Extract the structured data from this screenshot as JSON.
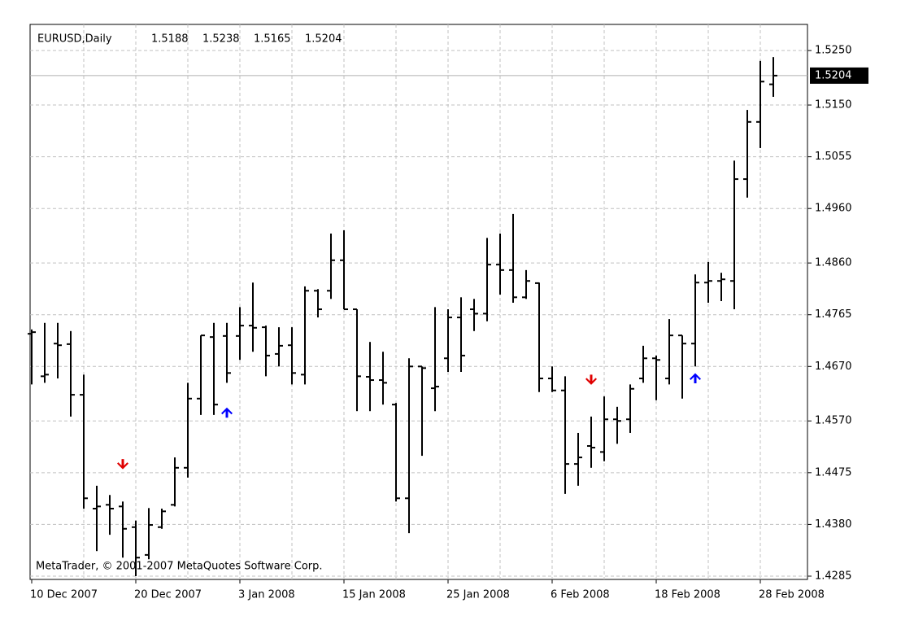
{
  "chart_data": {
    "type": "ohlc",
    "title": "EURUSD,Daily",
    "copyright": "MetaTrader, © 2001-2007 MetaQuotes Software Corp.",
    "color": "#000000",
    "grid": true,
    "categories": [
      "10 Dec 2007",
      null,
      null,
      null,
      null,
      null,
      null,
      null,
      "20 Dec 2007",
      null,
      null,
      null,
      null,
      null,
      null,
      null,
      "3 Jan 2008",
      null,
      null,
      null,
      null,
      null,
      null,
      null,
      "15 Jan 2008",
      null,
      null,
      null,
      null,
      null,
      null,
      null,
      "25 Jan 2008",
      null,
      null,
      null,
      null,
      null,
      null,
      null,
      "6 Feb 2008",
      null,
      null,
      null,
      null,
      null,
      null,
      null,
      "18 Feb 2008",
      null,
      null,
      null,
      null,
      null,
      null,
      null,
      "28 Feb 2008",
      null
    ],
    "open": [
      1.473,
      1.4652,
      1.4712,
      1.4711,
      1.4618,
      1.4409,
      1.4416,
      1.4413,
      1.4375,
      1.4324,
      1.4375,
      1.4416,
      1.4484,
      1.4611,
      1.4724,
      1.4726,
      1.4726,
      1.4745,
      1.4742,
      1.4693,
      1.4709,
      1.4655,
      1.4809,
      1.4809,
      1.4865,
      1.4775,
      1.4651,
      1.4645,
      1.46,
      1.4428,
      1.467,
      1.463,
      1.4685,
      1.476,
      1.4775,
      1.4767,
      1.4857,
      1.4847,
      1.4797,
      1.4823,
      1.4648,
      1.4626,
      1.4491,
      1.4524,
      1.4513,
      1.4573,
      1.4573,
      1.4648,
      1.4685,
      1.4648,
      1.4727,
      1.4712,
      1.4824,
      1.4827,
      1.4827,
      1.5014,
      1.5119,
      1.5188
    ],
    "high": [
      1.4738,
      1.475,
      1.475,
      1.4735,
      1.4655,
      1.4451,
      1.4434,
      1.4422,
      1.4387,
      1.441,
      1.4409,
      1.4503,
      1.464,
      1.4727,
      1.475,
      1.475,
      1.4779,
      1.4824,
      1.4745,
      1.4742,
      1.4742,
      1.4817,
      1.4812,
      1.4914,
      1.492,
      1.4775,
      1.4715,
      1.4697,
      1.4603,
      1.4685,
      1.467,
      1.4779,
      1.4775,
      1.4797,
      1.4794,
      1.4906,
      1.4914,
      1.495,
      1.4847,
      1.4824,
      1.467,
      1.4652,
      1.4548,
      1.4578,
      1.4615,
      1.4596,
      1.4637,
      1.4708,
      1.469,
      1.4757,
      1.4727,
      1.4839,
      1.4862,
      1.4842,
      1.5048,
      1.5141,
      1.5231,
      1.5238
    ],
    "low": [
      1.4637,
      1.464,
      1.4648,
      1.4578,
      1.4409,
      1.4331,
      1.4361,
      1.4319,
      1.4285,
      1.4316,
      1.4372,
      1.4413,
      1.4466,
      1.4581,
      1.4581,
      1.464,
      1.4682,
      1.4697,
      1.4652,
      1.467,
      1.4637,
      1.4637,
      1.476,
      1.4794,
      1.4775,
      1.4588,
      1.4588,
      1.46,
      1.4422,
      1.4364,
      1.4506,
      1.4588,
      1.466,
      1.466,
      1.4735,
      1.4753,
      1.4802,
      1.4787,
      1.4794,
      1.4623,
      1.4623,
      1.4436,
      1.4451,
      1.4484,
      1.4496,
      1.4528,
      1.4548,
      1.464,
      1.4608,
      1.4637,
      1.4611,
      1.467,
      1.4787,
      1.479,
      1.4775,
      1.498,
      1.5071,
      1.5165
    ],
    "close": [
      1.4733,
      1.4655,
      1.4709,
      1.4618,
      1.4428,
      1.4413,
      1.4409,
      1.4372,
      1.4319,
      1.4379,
      1.4404,
      1.4484,
      1.4611,
      1.4727,
      1.46,
      1.4658,
      1.4745,
      1.4741,
      1.469,
      1.4708,
      1.4658,
      1.4809,
      1.4775,
      1.4865,
      1.4775,
      1.4652,
      1.4645,
      1.464,
      1.4428,
      1.467,
      1.4667,
      1.4633,
      1.476,
      1.469,
      1.4767,
      1.4857,
      1.4847,
      1.4797,
      1.4827,
      1.4648,
      1.4626,
      1.4491,
      1.4503,
      1.4521,
      1.4573,
      1.457,
      1.4629,
      1.4685,
      1.4682,
      1.4727,
      1.4712,
      1.4824,
      1.4827,
      1.483,
      1.5014,
      1.5119,
      1.5193,
      1.5204
    ],
    "signals": [
      {
        "name": "sell",
        "direction": "down",
        "color": "#e00000",
        "values": [
          null,
          null,
          null,
          null,
          null,
          null,
          null,
          1.4488,
          null,
          null,
          null,
          null,
          null,
          null,
          null,
          null,
          null,
          null,
          null,
          null,
          null,
          null,
          null,
          null,
          null,
          null,
          null,
          null,
          null,
          null,
          null,
          null,
          null,
          null,
          null,
          null,
          null,
          null,
          null,
          null,
          null,
          null,
          null,
          1.4643,
          null,
          null,
          null,
          null,
          null,
          null,
          null,
          null,
          null,
          null,
          null,
          null,
          null,
          null
        ]
      },
      {
        "name": "buy",
        "direction": "up",
        "color": "#0000ff",
        "values": [
          null,
          null,
          null,
          null,
          null,
          null,
          null,
          null,
          null,
          null,
          null,
          null,
          null,
          null,
          null,
          1.4588,
          null,
          null,
          null,
          null,
          null,
          null,
          null,
          null,
          null,
          null,
          null,
          null,
          null,
          null,
          null,
          null,
          null,
          null,
          null,
          null,
          null,
          null,
          null,
          null,
          null,
          null,
          null,
          null,
          null,
          null,
          null,
          null,
          null,
          null,
          null,
          1.4651,
          null,
          null,
          null,
          null,
          null,
          null
        ]
      }
    ],
    "ylim": [
      1.4279,
      1.5298
    ],
    "yticks": [
      {
        "value": 1.525,
        "label": "1.5250"
      },
      {
        "value": 1.515,
        "label": "1.5150"
      },
      1.5055,
      {
        "value": 1.496,
        "label": "1.4960"
      },
      {
        "value": 1.486,
        "label": "1.4860"
      },
      1.4765,
      {
        "value": 1.467,
        "label": "1.4670"
      },
      {
        "value": 1.457,
        "label": "1.4570"
      },
      1.4475,
      {
        "value": 1.438,
        "label": "1.4380"
      },
      1.4285
    ]
  }
}
